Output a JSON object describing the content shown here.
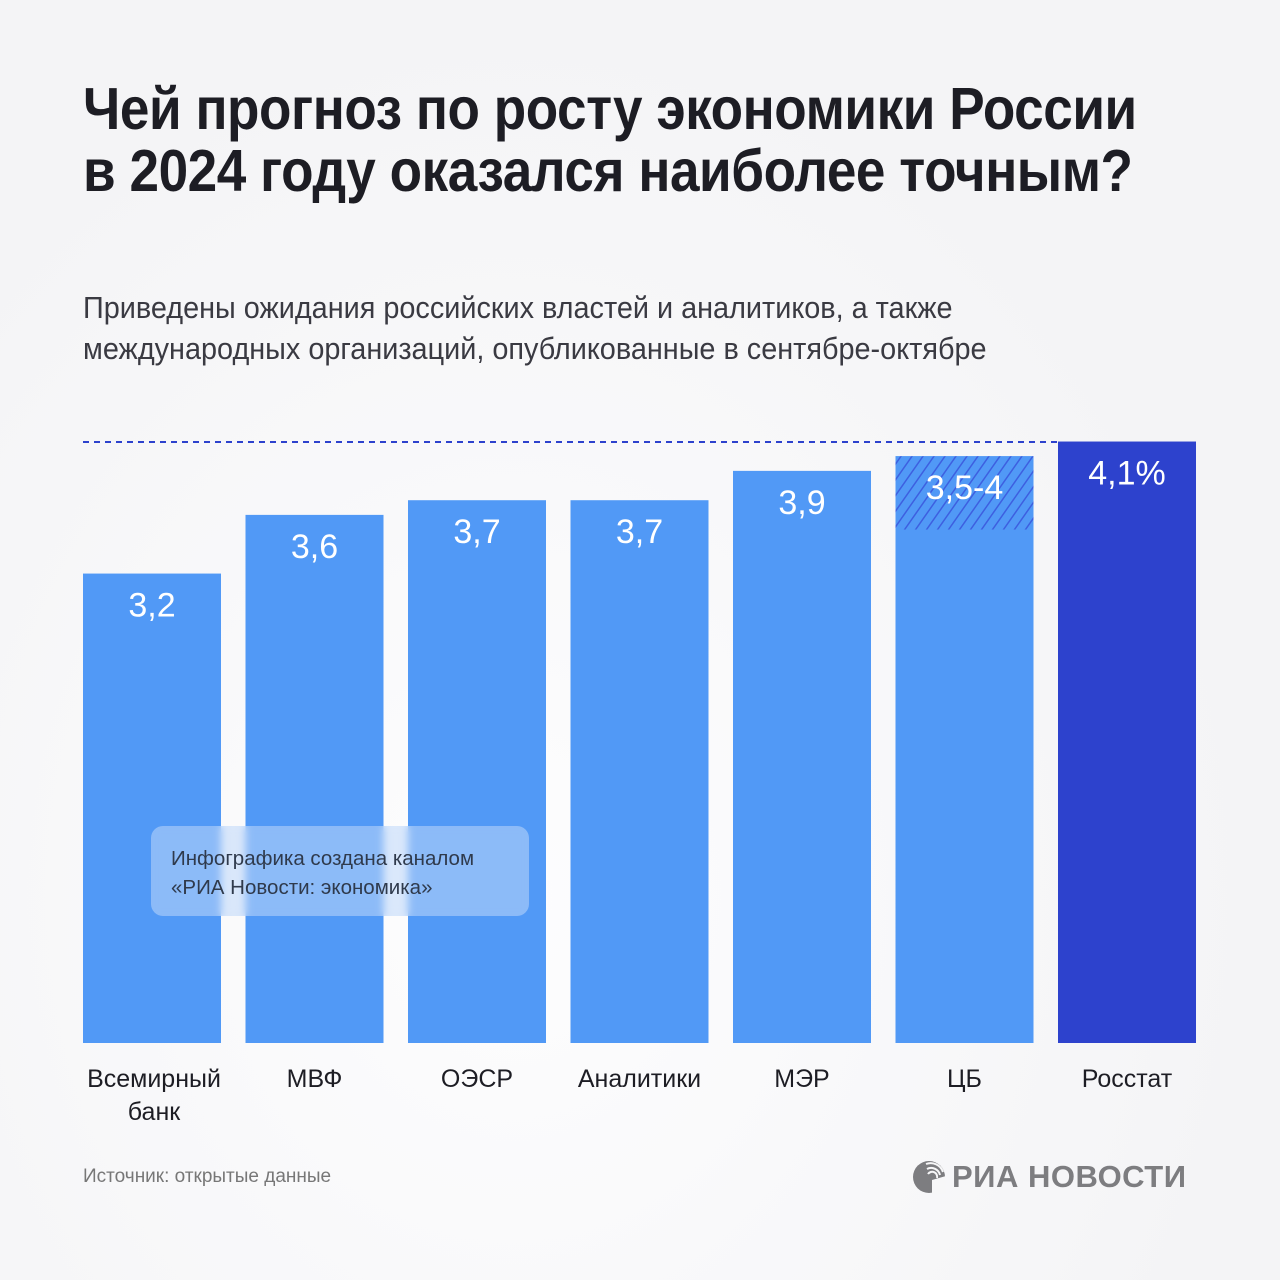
{
  "title": "Чей прогноз по росту экономики России в 2024 году оказался наиболее точным?",
  "subtitle_lines": [
    "Приведены ожидания российских властей и аналитиков, а также",
    "международных организаций, опубликованные в сентябре-октябре"
  ],
  "note_lines": [
    "Инфографика создана каналом",
    "«РИА Новости: экономика»"
  ],
  "source": "Источник: открытые данные",
  "logo_text": "РИА НОВОСТИ",
  "colors": {
    "bar": "#5199f6",
    "highlight": "#2d42cd",
    "hatch": "#3d5fe0",
    "dashed_line": "#2d42cd"
  },
  "chart_data": {
    "type": "bar",
    "title": "Чей прогноз по росту экономики России в 2024 году оказался наиболее точным?",
    "xlabel": "",
    "ylabel": "",
    "ylim": [
      0,
      4.1
    ],
    "grid": false,
    "categories": [
      [
        "Всемирный",
        "банк"
      ],
      [
        "МВФ"
      ],
      [
        "ОЭСР"
      ],
      [
        "Аналитики"
      ],
      [
        "МЭР"
      ],
      [
        "ЦБ"
      ],
      [
        "Росстат"
      ]
    ],
    "values": [
      3.2,
      3.6,
      3.7,
      3.7,
      3.9,
      [
        3.5,
        4.0
      ],
      4.1
    ],
    "labels": [
      "3,2",
      "3,6",
      "3,7",
      "3,7",
      "3,9",
      "3,5-4",
      "4,1%"
    ],
    "highlight_index": 6,
    "range_index": 5,
    "reference_line": 4.1
  }
}
